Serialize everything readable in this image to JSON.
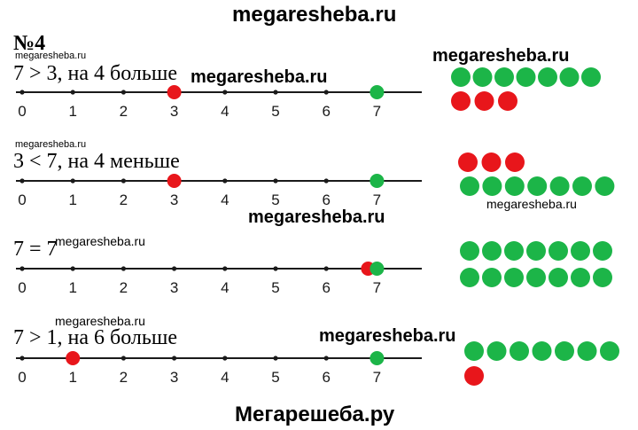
{
  "watermarks": {
    "top": "megaresheba.ru",
    "row1_right": "megaresheba.ru",
    "row1_mid": "megaresheba.ru",
    "row1_tiny": "megaresheba.ru",
    "row2_tiny": "megaresheba.ru",
    "row2_right": "megaresheba.ru",
    "row3_mid": "megaresheba.ru",
    "row3_left": "megaresheba.ru",
    "row4_left": "megaresheba.ru",
    "row4_mid": "megaresheba.ru"
  },
  "task_number": "№4",
  "footer": "Мегарешеба.ру",
  "colors": {
    "red": "#e8161b",
    "green": "#1cb548",
    "line": "#1a1a1a"
  },
  "tick_labels": [
    "0",
    "1",
    "2",
    "3",
    "4",
    "5",
    "6",
    "7"
  ],
  "rows": [
    {
      "statement": "7 > 3, на 4 больше",
      "red_point": 3,
      "green_point": 7,
      "green_count": 7,
      "red_count": 3
    },
    {
      "statement": "3 < 7, на 4 меньше",
      "red_point": 3,
      "green_point": 7,
      "green_count": 7,
      "red_count": 3
    },
    {
      "statement": "7 = 7",
      "red_point": 7,
      "green_point": 7,
      "green_count": 7,
      "red_count": 0,
      "green_count_second_row": 7
    },
    {
      "statement": "7 > 1, на 6 больше",
      "red_point": 1,
      "green_point": 7,
      "green_count": 7,
      "red_count": 1
    }
  ]
}
